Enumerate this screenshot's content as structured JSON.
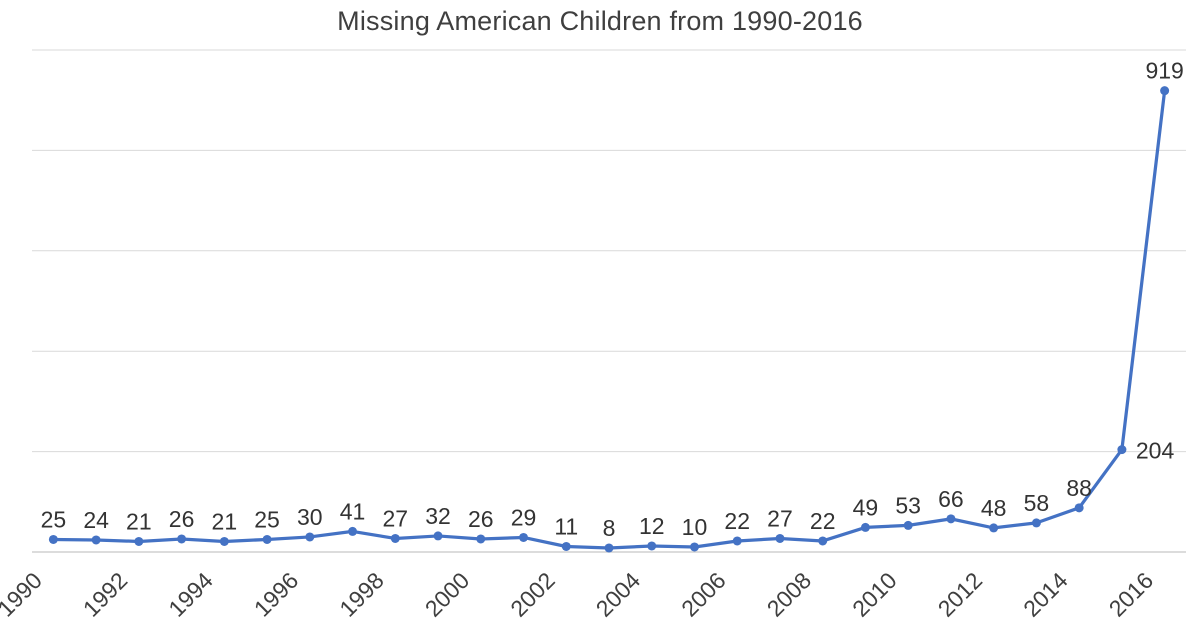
{
  "chart_data": {
    "type": "line",
    "title": "Missing American Children from 1990-2016",
    "x": [
      1990,
      1991,
      1992,
      1993,
      1994,
      1995,
      1996,
      1997,
      1998,
      1999,
      2000,
      2001,
      2002,
      2003,
      2004,
      2005,
      2006,
      2007,
      2008,
      2009,
      2010,
      2011,
      2012,
      2013,
      2014,
      2015,
      2016
    ],
    "values": [
      25,
      24,
      21,
      26,
      21,
      25,
      30,
      41,
      27,
      32,
      26,
      29,
      11,
      8,
      12,
      10,
      22,
      27,
      22,
      49,
      53,
      66,
      48,
      58,
      88,
      204,
      919
    ],
    "x_tick_labels": [
      "1990",
      "1992",
      "1994",
      "1996",
      "1998",
      "2000",
      "2002",
      "2004",
      "2006",
      "2008",
      "2010",
      "2012",
      "2014",
      "2016"
    ],
    "ylim": [
      0,
      1000
    ],
    "y_gridline_step": 200,
    "grid": "horizontal-only",
    "legend_position": "none",
    "y_axis_labels_visible": false,
    "data_labels_visible": true,
    "label_right_years": [
      2015
    ],
    "x_tick_rotation_deg": -45,
    "colors": {
      "line": "#4472C4",
      "marker": "#4472C4",
      "grid": "#D9D9D9",
      "axis": "#C6C6C6",
      "title": "#3F3F3F",
      "data_label": "#333333",
      "x_tick_label": "#3F3F3F",
      "background": "#FFFFFF"
    }
  }
}
